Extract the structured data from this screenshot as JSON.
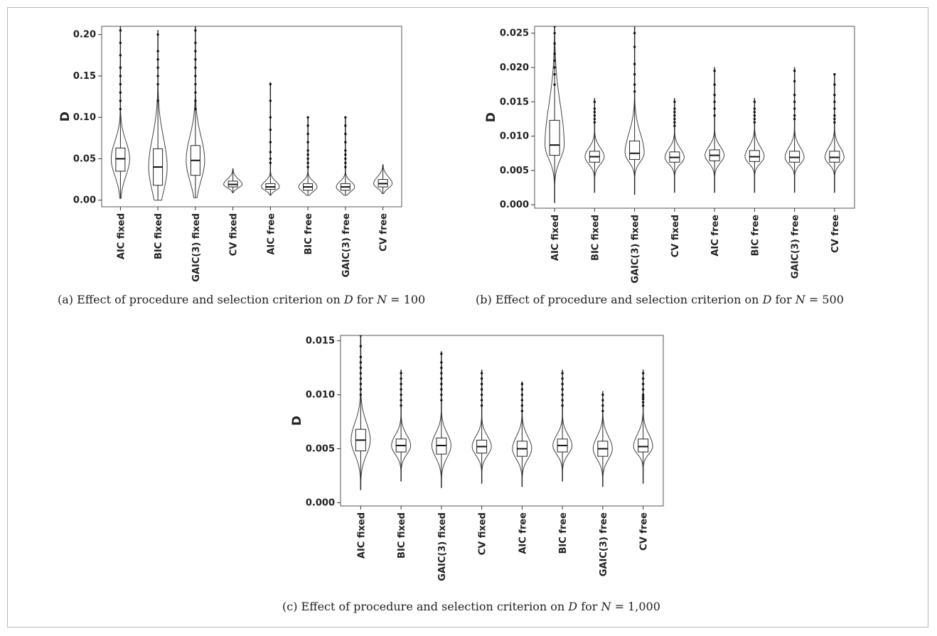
{
  "chart_data": [
    {
      "type": "violin",
      "panel": "a",
      "caption": "(a) Effect of procedure and selection criterion on D for N = 100",
      "caption_parts": {
        "prefix": "(a) Effect of procedure and selection criterion on ",
        "var": "D",
        "mid": " for ",
        "nvar": "N",
        "value": " = 100"
      },
      "ylabel": "D",
      "ylim": [
        -0.008,
        0.21
      ],
      "yticks": [
        0.0,
        0.05,
        0.1,
        0.15,
        0.2
      ],
      "ytick_labels": [
        "0.00",
        "0.05",
        "0.10",
        "0.15",
        "0.20"
      ],
      "categories": [
        "AIC fixed",
        "BIC fixed",
        "GAIC(3) fixed",
        "CV fixed",
        "AIC free",
        "BIC free",
        "GAIC(3) free",
        "CV free"
      ],
      "series": [
        {
          "min": 0.002,
          "q1": 0.035,
          "median": 0.05,
          "q3": 0.063,
          "max": 0.21,
          "outliers": [
            0.11,
            0.12,
            0.13,
            0.14,
            0.15,
            0.16,
            0.175,
            0.19,
            0.205
          ]
        },
        {
          "min": 0.0,
          "q1": 0.018,
          "median": 0.04,
          "q3": 0.062,
          "max": 0.205,
          "outliers": [
            0.12,
            0.14,
            0.15,
            0.16,
            0.17,
            0.18,
            0.2
          ]
        },
        {
          "min": 0.003,
          "q1": 0.03,
          "median": 0.048,
          "q3": 0.066,
          "max": 0.21,
          "outliers": [
            0.11,
            0.12,
            0.13,
            0.14,
            0.15,
            0.16,
            0.17,
            0.18,
            0.19,
            0.205
          ]
        },
        {
          "min": 0.009,
          "q1": 0.016,
          "median": 0.019,
          "q3": 0.023,
          "max": 0.038,
          "outliers": []
        },
        {
          "min": 0.006,
          "q1": 0.013,
          "median": 0.016,
          "q3": 0.02,
          "max": 0.142,
          "outliers": [
            0.045,
            0.05,
            0.058,
            0.07,
            0.085,
            0.1,
            0.12,
            0.14
          ]
        },
        {
          "min": 0.006,
          "q1": 0.012,
          "median": 0.016,
          "q3": 0.02,
          "max": 0.1,
          "outliers": [
            0.04,
            0.045,
            0.05,
            0.055,
            0.06,
            0.07,
            0.08,
            0.09,
            0.1
          ]
        },
        {
          "min": 0.006,
          "q1": 0.012,
          "median": 0.016,
          "q3": 0.02,
          "max": 0.1,
          "outliers": [
            0.04,
            0.045,
            0.05,
            0.055,
            0.06,
            0.07,
            0.08,
            0.09,
            0.1
          ]
        },
        {
          "min": 0.008,
          "q1": 0.016,
          "median": 0.02,
          "q3": 0.025,
          "max": 0.043,
          "outliers": []
        }
      ]
    },
    {
      "type": "violin",
      "panel": "b",
      "caption": "(b) Effect of procedure and selection criterion on D for N = 500",
      "caption_parts": {
        "prefix": "(b) Effect of procedure and selection criterion on ",
        "var": "D",
        "mid": " for ",
        "nvar": "N",
        "value": " = 500"
      },
      "ylabel": "D",
      "ylim": [
        -0.0005,
        0.026
      ],
      "yticks": [
        0.0,
        0.005,
        0.01,
        0.015,
        0.02,
        0.025
      ],
      "ytick_labels": [
        "0.000",
        "0.005",
        "0.010",
        "0.015",
        "0.020",
        "0.025"
      ],
      "categories": [
        "AIC fixed",
        "BIC fixed",
        "GAIC(3) fixed",
        "CV fixed",
        "AIC free",
        "BIC free",
        "GAIC(3) free",
        "CV free"
      ],
      "series": [
        {
          "min": 0.0003,
          "q1": 0.0072,
          "median": 0.0087,
          "q3": 0.0123,
          "max": 0.026,
          "outliers": [
            0.0175,
            0.019,
            0.02,
            0.021,
            0.022,
            0.0235,
            0.025,
            0.026
          ]
        },
        {
          "min": 0.0018,
          "q1": 0.0062,
          "median": 0.007,
          "q3": 0.0078,
          "max": 0.0155,
          "outliers": [
            0.012,
            0.0125,
            0.013,
            0.0135,
            0.014,
            0.015
          ]
        },
        {
          "min": 0.0015,
          "q1": 0.0066,
          "median": 0.0075,
          "q3": 0.0093,
          "max": 0.026,
          "outliers": [
            0.0165,
            0.0175,
            0.019,
            0.0205,
            0.023,
            0.025
          ]
        },
        {
          "min": 0.0018,
          "q1": 0.0062,
          "median": 0.0069,
          "q3": 0.0077,
          "max": 0.0155,
          "outliers": [
            0.0115,
            0.012,
            0.0125,
            0.013,
            0.0135,
            0.014,
            0.015
          ]
        },
        {
          "min": 0.0018,
          "q1": 0.0064,
          "median": 0.0072,
          "q3": 0.008,
          "max": 0.02,
          "outliers": [
            0.013,
            0.014,
            0.015,
            0.016,
            0.0175,
            0.0195
          ]
        },
        {
          "min": 0.0018,
          "q1": 0.0063,
          "median": 0.007,
          "q3": 0.0079,
          "max": 0.0155,
          "outliers": [
            0.012,
            0.0125,
            0.013,
            0.0135,
            0.014,
            0.015
          ]
        },
        {
          "min": 0.0018,
          "q1": 0.0062,
          "median": 0.0069,
          "q3": 0.0078,
          "max": 0.02,
          "outliers": [
            0.0125,
            0.013,
            0.014,
            0.015,
            0.016,
            0.018,
            0.0195
          ]
        },
        {
          "min": 0.0018,
          "q1": 0.0062,
          "median": 0.0069,
          "q3": 0.0078,
          "max": 0.019,
          "outliers": [
            0.012,
            0.0125,
            0.013,
            0.014,
            0.015,
            0.016,
            0.0175,
            0.019
          ]
        }
      ]
    },
    {
      "type": "violin",
      "panel": "c",
      "caption": "(c) Effect of procedure and selection criterion on D for N = 1,000",
      "caption_parts": {
        "prefix": "(c) Effect of procedure and selection criterion on ",
        "var": "D",
        "mid": " for ",
        "nvar": "N",
        "value": " = 1,000"
      },
      "ylabel": "D",
      "ylim": [
        -0.0003,
        0.0155
      ],
      "yticks": [
        0.0,
        0.005,
        0.01,
        0.015
      ],
      "ytick_labels": [
        "0.000",
        "0.005",
        "0.010",
        "0.015"
      ],
      "categories": [
        "AIC fixed",
        "BIC fixed",
        "GAIC(3) fixed",
        "CV fixed",
        "AIC free",
        "BIC free",
        "GAIC(3) free",
        "CV free"
      ],
      "series": [
        {
          "min": 0.0012,
          "q1": 0.0048,
          "median": 0.0058,
          "q3": 0.0068,
          "max": 0.0155,
          "outliers": [
            0.01,
            0.0105,
            0.011,
            0.0115,
            0.012,
            0.0125,
            0.013,
            0.0135,
            0.0145,
            0.0155
          ]
        },
        {
          "min": 0.002,
          "q1": 0.0047,
          "median": 0.0053,
          "q3": 0.0059,
          "max": 0.0123,
          "outliers": [
            0.009,
            0.0095,
            0.01,
            0.0105,
            0.011,
            0.0115,
            0.012
          ]
        },
        {
          "min": 0.0014,
          "q1": 0.0045,
          "median": 0.0053,
          "q3": 0.006,
          "max": 0.014,
          "outliers": [
            0.0095,
            0.01,
            0.0105,
            0.011,
            0.0115,
            0.012,
            0.0125,
            0.013,
            0.0138
          ]
        },
        {
          "min": 0.0018,
          "q1": 0.0046,
          "median": 0.0052,
          "q3": 0.0058,
          "max": 0.0123,
          "outliers": [
            0.009,
            0.0095,
            0.01,
            0.0105,
            0.011,
            0.0115,
            0.012
          ]
        },
        {
          "min": 0.0015,
          "q1": 0.0043,
          "median": 0.005,
          "q3": 0.0057,
          "max": 0.0112,
          "outliers": [
            0.0085,
            0.009,
            0.0095,
            0.01,
            0.0105,
            0.011
          ]
        },
        {
          "min": 0.002,
          "q1": 0.0047,
          "median": 0.0053,
          "q3": 0.0059,
          "max": 0.0123,
          "outliers": [
            0.009,
            0.0095,
            0.01,
            0.0105,
            0.011,
            0.0115,
            0.012
          ]
        },
        {
          "min": 0.0015,
          "q1": 0.0043,
          "median": 0.005,
          "q3": 0.0057,
          "max": 0.0103,
          "outliers": [
            0.0085,
            0.009,
            0.0095,
            0.01
          ]
        },
        {
          "min": 0.0018,
          "q1": 0.0047,
          "median": 0.0052,
          "q3": 0.0059,
          "max": 0.0123,
          "outliers": [
            0.009,
            0.0093,
            0.0096,
            0.0098,
            0.01,
            0.0105,
            0.011,
            0.0115,
            0.012
          ]
        }
      ]
    }
  ]
}
